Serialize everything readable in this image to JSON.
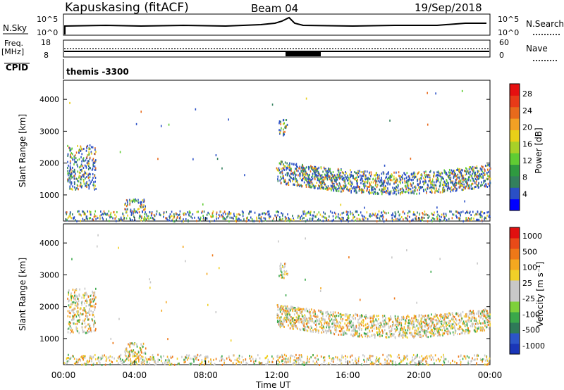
{
  "header": {
    "station": "Kapuskasing (fitACF)",
    "beam": "Beam 04",
    "date": "19/Sep/2018"
  },
  "panels": {
    "nsky": {
      "left_label": "N.Sky",
      "right_label": "N.Search",
      "y_tick_top": "10^5",
      "y_tick_bottom": "10^0",
      "right_tick_top": "10^5",
      "right_tick_bottom": "10^0"
    },
    "freq": {
      "left_label_1": "Freq.",
      "left_label_2": "[MHz]",
      "right_label": "Nave",
      "y_tick_top": "18",
      "y_tick_bottom": "8",
      "right_tick_top": "60",
      "right_tick_bottom": "0"
    },
    "cpid": {
      "label": "CPID",
      "value": "themis -3300"
    }
  },
  "chart_data": [
    {
      "type": "heatmap",
      "name": "power",
      "ylabel": "Slant Range [km]",
      "ylim": [
        180,
        4600
      ],
      "yticks": [
        "1000",
        "2000",
        "3000",
        "4000"
      ],
      "colorbar_label": "Power [dB]",
      "colorbar_ticks": [
        "4",
        "8",
        "12",
        "16",
        "20",
        "24",
        "28"
      ],
      "colorbar_colors": [
        "#0000ff",
        "#2a4fc6",
        "#33805d",
        "#2f9a40",
        "#60cc33",
        "#a8d028",
        "#e8cf18",
        "#f2a024",
        "#e86a1c",
        "#e83a18",
        "#e61010"
      ]
    },
    {
      "type": "heatmap",
      "name": "velocity",
      "ylabel": "Slant Range [km]",
      "ylim": [
        180,
        4600
      ],
      "yticks": [
        "1000",
        "2000",
        "3000",
        "4000"
      ],
      "colorbar_label": "Velocity [m s⁻¹]",
      "colorbar_ticks": [
        "1000",
        "500",
        "100",
        "25",
        "-25",
        "-100",
        "-500",
        "-1000"
      ],
      "colorbar_colors": [
        "#1a36b8",
        "#2c55c8",
        "#2e7a58",
        "#3aa84a",
        "#7ed03a",
        "#c8c8c8",
        "#c8c8c8",
        "#f0d028",
        "#f4a820",
        "#ee7818",
        "#e84a18",
        "#e01010"
      ],
      "xticks": [
        "00:00",
        "04:00",
        "08:00",
        "12:00",
        "16:00",
        "20:00",
        "00:00"
      ],
      "xlabel": "Time UT",
      "xlim_hours": [
        0,
        24
      ]
    }
  ]
}
